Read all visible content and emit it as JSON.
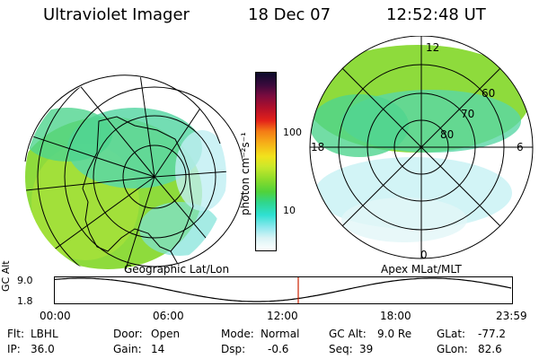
{
  "header": {
    "instrument": "Ultraviolet Imager",
    "date": "18 Dec 07",
    "time": "12:52:48 UT"
  },
  "colorbar": {
    "label": "photon cm⁻²s⁻¹",
    "ticks": [
      "100",
      "10"
    ],
    "colors": [
      "#0b0b2a",
      "#3b0a3c",
      "#7a0b3e",
      "#b3102a",
      "#e3221a",
      "#f47c16",
      "#f6b218",
      "#f2e21c",
      "#c9e82b",
      "#8ddc2b",
      "#50d23a",
      "#2fd68c",
      "#2fe0d2",
      "#8ee8ee",
      "#d9f3f5",
      "#ffffff"
    ]
  },
  "geo_map": {
    "caption": "Geographic Lat/Lon"
  },
  "mag_map": {
    "caption": "Apex MLat/MLT",
    "mlt_labels": {
      "top": "12",
      "left": "18",
      "right": "6",
      "bottom": "0"
    },
    "lat_labels": [
      "60",
      "70",
      "80"
    ]
  },
  "altitude_plot": {
    "ylabel": "GC Alt",
    "yticks": [
      "9.0",
      "1.8"
    ],
    "xticks": [
      "00:00",
      "06:00",
      "12:00",
      "18:00",
      "23:59"
    ],
    "current_marker_color": "#cc2200"
  },
  "status": {
    "filter_label": "Flt:",
    "filter_value": "LBHL",
    "ip_label": "IP:",
    "ip_value": "36.0",
    "door_label": "Door:",
    "door_value": "Open",
    "gain_label": "Gain:",
    "gain_value": "14",
    "mode_label": "Mode:",
    "mode_value": "Normal",
    "dsp_label": "Dsp:",
    "dsp_value": "-0.6",
    "gcalt_label": "GC Alt:",
    "gcalt_value": "9.0 Re",
    "seq_label": "Seq:",
    "seq_value": "39",
    "glat_label": "GLat:",
    "glat_value": "-77.2",
    "glon_label": "GLon:",
    "glon_value": "82.6"
  }
}
